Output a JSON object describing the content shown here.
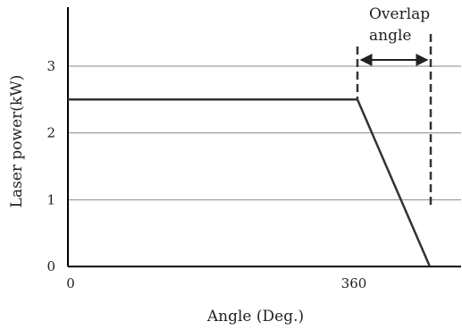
{
  "chart_data": {
    "type": "line",
    "title": "",
    "xlabel": "Angle (Deg.)",
    "ylabel": "Laser power(kW)",
    "xlim": [
      0,
      450
    ],
    "ylim": [
      0,
      3.8
    ],
    "x_ticks": [
      {
        "value": 0,
        "label": "0"
      },
      {
        "value": 360,
        "label": "360"
      }
    ],
    "y_ticks": [
      {
        "value": 0,
        "label": "0"
      },
      {
        "value": 1,
        "label": "1"
      },
      {
        "value": 2,
        "label": "2"
      },
      {
        "value": 3,
        "label": "3"
      }
    ],
    "grid": "horizontal",
    "series": [
      {
        "x": [
          0,
          360,
          450
        ],
        "y": [
          2.5,
          2.5,
          0
        ]
      }
    ],
    "annotations": {
      "overlap_label_line1": "Overlap",
      "overlap_label_line2": "angle",
      "overlap_start_x": 360,
      "overlap_end_x": 450
    },
    "colors": {
      "line": "#333333",
      "grid": "#888888",
      "axis": "#000000"
    }
  }
}
